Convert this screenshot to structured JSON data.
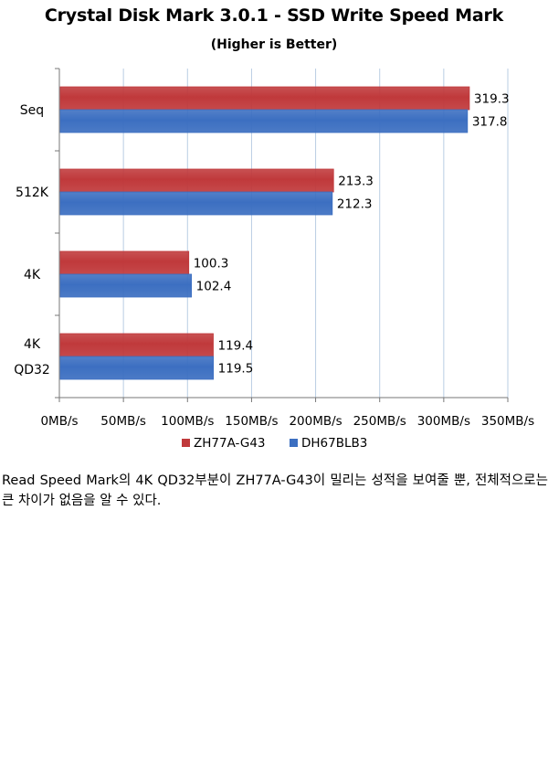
{
  "chart_data": {
    "type": "bar",
    "orientation": "horizontal",
    "title": "Crystal Disk Mark 3.0.1 - SSD Write Speed Mark",
    "subtitle": "(Higher is Better)",
    "categories": [
      "Seq",
      "512K",
      "4K",
      "4K\nQD32"
    ],
    "series": [
      {
        "name": "ZH77A-G43",
        "color": "#c0393b",
        "values": [
          319.3,
          213.3,
          100.3,
          119.4
        ]
      },
      {
        "name": "DH67BLB3",
        "color": "#3c6fc1",
        "values": [
          317.8,
          212.3,
          102.4,
          119.5
        ]
      }
    ],
    "xlim": [
      0,
      350
    ],
    "x_ticks": [
      0,
      50,
      100,
      150,
      200,
      250,
      300,
      350
    ],
    "x_tick_labels": [
      "0MB/s",
      "50MB/s",
      "100MB/s",
      "150MB/s",
      "200MB/s",
      "250MB/s",
      "300MB/s",
      "350MB/s"
    ],
    "grid": true,
    "legend_position": "bottom"
  },
  "caption": "Read Speed Mark의 4K QD32부분이 ZH77A-G43이 밀리는 성적을 보여줄 뿐, 전체적으로는 큰 차이가 없음을 알 수 있다."
}
